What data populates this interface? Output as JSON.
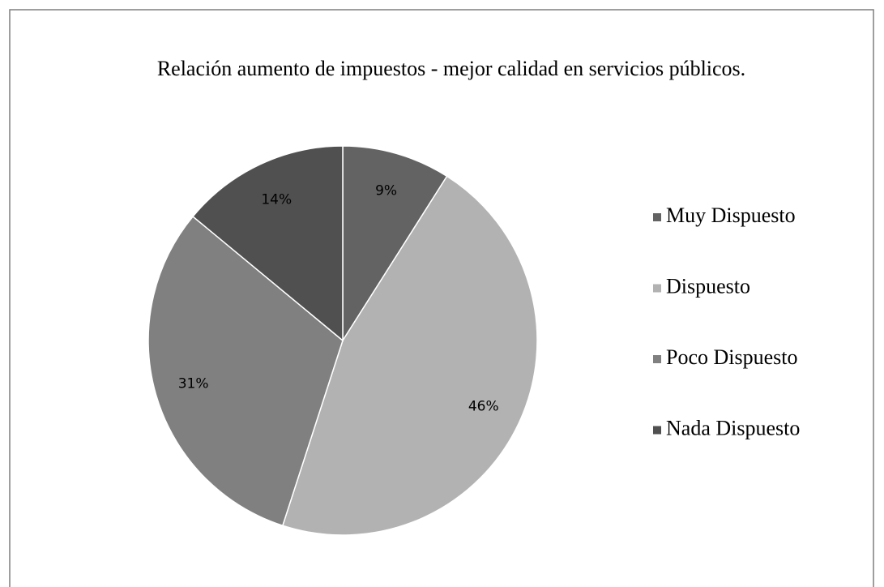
{
  "chart_data": {
    "type": "pie",
    "title": "Relación aumento de impuestos - mejor calidad en servicios públicos.",
    "categories": [
      "Muy Dispuesto",
      "Dispuesto",
      "Poco Dispuesto",
      "Nada Dispuesto"
    ],
    "values": [
      9,
      46,
      31,
      14
    ],
    "value_labels": [
      "9%",
      "46%",
      "31%",
      "14%"
    ],
    "colors": [
      "#636363",
      "#b2b2b2",
      "#808080",
      "#505050"
    ],
    "legend": "right"
  }
}
